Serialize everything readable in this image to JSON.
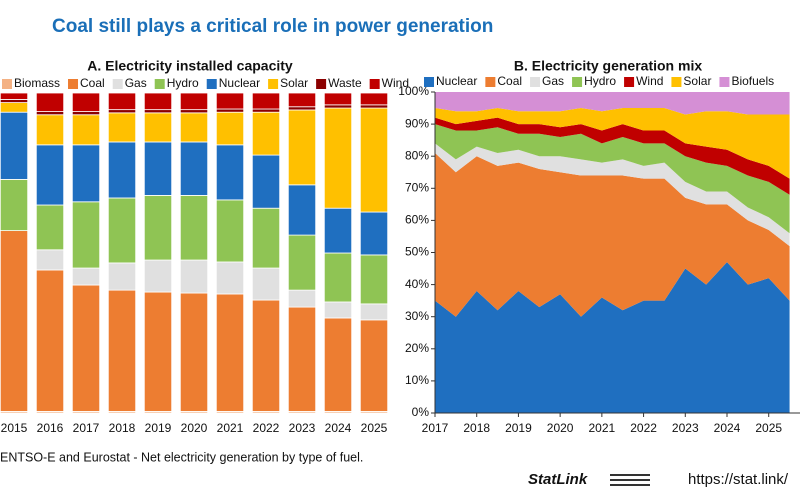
{
  "header": {
    "title": "Coal still plays a critical role in power generation"
  },
  "footer": {
    "source": "ENTSO-E and Eurostat - Net electricity generation by type of fuel.",
    "statlink": "StatLink",
    "url": "https://stat.link/"
  },
  "chart_data": [
    {
      "type": "bar",
      "stacked": true,
      "title": "A. Electricity installed capacity",
      "categories": [
        "2015",
        "2016",
        "2017",
        "2018",
        "2019",
        "2020",
        "2021",
        "2022",
        "2023",
        "2024",
        "2025"
      ],
      "ylim": [
        0,
        100
      ],
      "series": [
        {
          "name": "Biomass",
          "color": "#f4b183",
          "values": [
            0.5,
            0.5,
            0.5,
            0.5,
            0.5,
            0.5,
            0.5,
            0.5,
            0.5,
            0.5,
            0.5
          ]
        },
        {
          "name": "Coal",
          "color": "#ed7d31",
          "values": [
            56.5,
            44.2,
            39.5,
            37.9,
            37.3,
            37,
            36.7,
            34.8,
            32.6,
            29.2,
            28.6
          ]
        },
        {
          "name": "Gas",
          "color": "#e0e0e0",
          "values": [
            0,
            6.3,
            5.3,
            8.5,
            10,
            10.3,
            10,
            10,
            5.3,
            5,
            5
          ]
        },
        {
          "name": "Hydro",
          "color": "#8fc454",
          "values": [
            16,
            14,
            20.7,
            20.3,
            20.2,
            20.2,
            19.4,
            18.7,
            17.2,
            15.3,
            15.3
          ]
        },
        {
          "name": "Nuclear",
          "color": "#1f6fc0",
          "values": [
            21,
            18.8,
            17.8,
            17.5,
            16.7,
            16.7,
            17.2,
            16.6,
            15.7,
            14,
            13.4
          ]
        },
        {
          "name": "Solar",
          "color": "#ffc000",
          "values": [
            3,
            9.4,
            9.4,
            9.1,
            9.1,
            9.1,
            10.2,
            13.4,
            23.4,
            31.3,
            32.5
          ]
        },
        {
          "name": "Waste",
          "color": "#8b0000",
          "values": [
            1,
            1,
            1,
            1,
            1,
            1,
            1,
            1,
            1,
            1,
            1
          ]
        },
        {
          "name": "Wind",
          "color": "#c00000",
          "values": [
            2,
            5.8,
            5.8,
            5.2,
            5.2,
            5.2,
            5,
            5,
            4.3,
            3.7,
            3.7
          ]
        }
      ]
    },
    {
      "type": "area",
      "stacked": true,
      "title": "B. Electricity generation mix",
      "x": [
        2017,
        2017.5,
        2018,
        2018.5,
        2019,
        2019.5,
        2020,
        2020.5,
        2021,
        2021.5,
        2022,
        2022.5,
        2023,
        2023.5,
        2024,
        2024.5,
        2025,
        2025.5
      ],
      "xlim": [
        2017,
        2025.75
      ],
      "xticks": [
        2017,
        2018,
        2019,
        2020,
        2021,
        2022,
        2023,
        2024,
        2025
      ],
      "ylim": [
        0,
        100
      ],
      "yticks": [
        {
          "value": 0,
          "label": "0%"
        },
        {
          "value": 10,
          "label": "10%"
        },
        {
          "value": 20,
          "label": "20%"
        },
        {
          "value": 30,
          "label": "30%"
        },
        {
          "value": 40,
          "label": "40%"
        },
        {
          "value": 50,
          "label": "50%"
        },
        {
          "value": 60,
          "label": "60%"
        },
        {
          "value": 70,
          "label": "70%"
        },
        {
          "value": 80,
          "label": "80%"
        },
        {
          "value": 90,
          "label": "90%"
        },
        {
          "value": 100,
          "label": "100%"
        }
      ],
      "series": [
        {
          "name": "Nuclear",
          "color": "#1f6fc0",
          "values": [
            35,
            30,
            38,
            32,
            38,
            33,
            37,
            30,
            36,
            32,
            35,
            35,
            45,
            40,
            47,
            40,
            42,
            35
          ]
        },
        {
          "name": "Coal",
          "color": "#ed7d31",
          "values": [
            46,
            45,
            42,
            45,
            40,
            43,
            38,
            44,
            38,
            42,
            38,
            38,
            22,
            25,
            18,
            20,
            15,
            17
          ]
        },
        {
          "name": "Gas",
          "color": "#e0e0e0",
          "values": [
            3,
            4,
            3,
            4,
            4,
            4,
            5,
            5,
            4,
            5,
            4,
            5,
            5,
            4,
            4,
            4,
            4,
            4
          ]
        },
        {
          "name": "Hydro",
          "color": "#8fc454",
          "values": [
            6,
            9,
            5,
            8,
            5,
            7,
            6,
            8,
            6,
            7,
            7,
            6,
            8,
            9,
            8,
            10,
            11,
            12
          ]
        },
        {
          "name": "Wind",
          "color": "#c00000",
          "values": [
            2,
            2,
            3,
            3,
            3,
            3,
            3,
            3,
            4,
            4,
            4,
            4,
            4,
            5,
            5,
            5,
            5,
            5
          ]
        },
        {
          "name": "Solar",
          "color": "#ffc000",
          "values": [
            3,
            4,
            3,
            3,
            4,
            4,
            5,
            5,
            6,
            5,
            7,
            7,
            9,
            11,
            12,
            14,
            16,
            20
          ]
        },
        {
          "name": "Biofuels",
          "color": "#d58fd5",
          "values": [
            5,
            6,
            6,
            5,
            6,
            6,
            6,
            5,
            6,
            5,
            5,
            5,
            7,
            6,
            6,
            7,
            7,
            7
          ]
        }
      ]
    }
  ]
}
